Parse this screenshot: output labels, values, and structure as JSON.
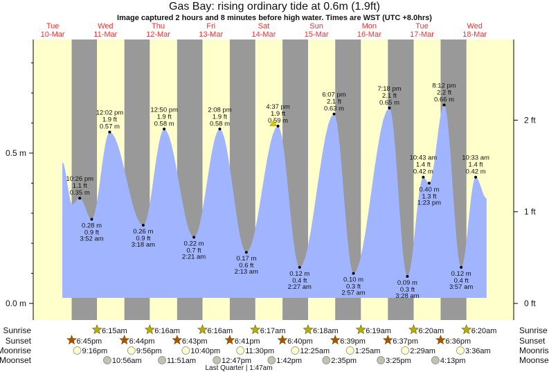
{
  "title": "Gas Bay: rising  ordinary tide at 0.6m (1.9ft)",
  "subtitle": "Image captured 2 hours and 8 minutes before high water. Times are WST (UTC +8.0hrs)",
  "colors": {
    "day": "#ffffcc",
    "night": "#999999",
    "water": "#a0b4ff",
    "day_label": "#ff2a2a",
    "sunrise": "#b8b000",
    "sunset": "#b25000",
    "moonrise": "#ffffcc",
    "moonset": "#c4c2ae",
    "now_marker": "#d8c800"
  },
  "chart_data": {
    "type": "area",
    "title": "Gas Bay: rising  ordinary tide at 0.6m (1.9ft)",
    "days": [
      {
        "dow": "Tue",
        "date": "10-Mar"
      },
      {
        "dow": "Wed",
        "date": "11-Mar"
      },
      {
        "dow": "Thu",
        "date": "12-Mar"
      },
      {
        "dow": "Fri",
        "date": "13-Mar"
      },
      {
        "dow": "Sat",
        "date": "14-Mar"
      },
      {
        "dow": "Sun",
        "date": "15-Mar"
      },
      {
        "dow": "Mon",
        "date": "16-Mar"
      },
      {
        "dow": "Tue",
        "date": "17-Mar"
      },
      {
        "dow": "Wed",
        "date": "18-Mar"
      }
    ],
    "y_left": {
      "unit": "m",
      "range": [
        -0.055,
        0.878
      ],
      "ticks": [
        {
          "v": 0.0,
          "label": "0.0 m"
        },
        {
          "v": 0.5,
          "label": "0.5 m"
        }
      ]
    },
    "y_right": {
      "unit": "ft",
      "ticks": [
        {
          "v": 0,
          "label": "0 ft"
        },
        {
          "v": 1,
          "label": "1 ft"
        },
        {
          "v": 2,
          "label": "2 ft"
        }
      ]
    },
    "curve_start": {
      "day": 0,
      "time": "2:30 pm",
      "m": 0.47
    },
    "curve_minor_low": {
      "day": 0,
      "time": "7:00 pm",
      "m": 0.33
    },
    "curve_end": {
      "day": 8,
      "time": "3:30 pm",
      "m": 0.35
    },
    "extremes": [
      {
        "day": 0,
        "time": "10:26 pm",
        "m": "0.35 m",
        "ft": "1.1 ft",
        "value": 0.35,
        "type": "high"
      },
      {
        "day": 1,
        "time": "3:52 am",
        "m": "0.28 m",
        "ft": "0.9 ft",
        "value": 0.28,
        "type": "low"
      },
      {
        "day": 1,
        "time": "12:02 pm",
        "m": "0.57 m",
        "ft": "1.9 ft",
        "value": 0.57,
        "type": "high"
      },
      {
        "day": 2,
        "time": "3:18 am",
        "m": "0.26 m",
        "ft": "0.9 ft",
        "value": 0.26,
        "type": "low"
      },
      {
        "day": 2,
        "time": "12:50 pm",
        "m": "0.58 m",
        "ft": "1.9 ft",
        "value": 0.58,
        "type": "high"
      },
      {
        "day": 3,
        "time": "2:21 am",
        "m": "0.22 m",
        "ft": "0.7 ft",
        "value": 0.22,
        "type": "low"
      },
      {
        "day": 3,
        "time": "2:08 pm",
        "m": "0.58 m",
        "ft": "1.9 ft",
        "value": 0.58,
        "type": "high"
      },
      {
        "day": 4,
        "time": "2:13 am",
        "m": "0.17 m",
        "ft": "0.6 ft",
        "value": 0.17,
        "type": "low"
      },
      {
        "day": 4,
        "time": "4:37 pm",
        "m": "0.59 m",
        "ft": "1.9 ft",
        "value": 0.59,
        "type": "high"
      },
      {
        "day": 5,
        "time": "2:27 am",
        "m": "0.12 m",
        "ft": "0.4 ft",
        "value": 0.12,
        "type": "low"
      },
      {
        "day": 5,
        "time": "6:07 pm",
        "m": "0.63 m",
        "ft": "2.1 ft",
        "value": 0.63,
        "type": "high"
      },
      {
        "day": 6,
        "time": "2:57 am",
        "m": "0.10 m",
        "ft": "0.3 ft",
        "value": 0.1,
        "type": "low"
      },
      {
        "day": 6,
        "time": "7:18 pm",
        "m": "0.65 m",
        "ft": "2.1 ft",
        "value": 0.65,
        "type": "high"
      },
      {
        "day": 7,
        "time": "3:28 am",
        "m": "0.09 m",
        "ft": "0.3 ft",
        "value": 0.09,
        "type": "low"
      },
      {
        "day": 7,
        "time": "10:43 am",
        "m": "0.42 m",
        "ft": "1.4 ft",
        "value": 0.42,
        "type": "high"
      },
      {
        "day": 7,
        "time": "1:23 pm",
        "m": "0.40 m",
        "ft": "1.3 ft",
        "value": 0.4,
        "type": "low"
      },
      {
        "day": 7,
        "time": "8:12 pm",
        "m": "0.66 m",
        "ft": "2.2 ft",
        "value": 0.66,
        "type": "high"
      },
      {
        "day": 8,
        "time": "3:57 am",
        "m": "0.12 m",
        "ft": "0.4 ft",
        "value": 0.12,
        "type": "low"
      },
      {
        "day": 8,
        "time": "10:33 am",
        "m": "0.42 m",
        "ft": "1.4 ft",
        "value": 0.42,
        "type": "high"
      }
    ],
    "now_marker": {
      "day": 4,
      "time": "2:29 pm",
      "m": 0.6
    },
    "rows": {
      "sunrise": {
        "label": "Sunrise",
        "items": [
          {
            "day": 1,
            "time": "6:15am"
          },
          {
            "day": 2,
            "time": "6:16am"
          },
          {
            "day": 3,
            "time": "6:16am"
          },
          {
            "day": 4,
            "time": "6:17am"
          },
          {
            "day": 5,
            "time": "6:18am"
          },
          {
            "day": 6,
            "time": "6:19am"
          },
          {
            "day": 7,
            "time": "6:20am"
          },
          {
            "day": 8,
            "time": "6:20am"
          }
        ]
      },
      "sunset": {
        "label": "Sunset",
        "items": [
          {
            "day": 0,
            "time": "6:45pm"
          },
          {
            "day": 1,
            "time": "6:44pm"
          },
          {
            "day": 2,
            "time": "6:43pm"
          },
          {
            "day": 3,
            "time": "6:41pm"
          },
          {
            "day": 4,
            "time": "6:40pm"
          },
          {
            "day": 5,
            "time": "6:39pm"
          },
          {
            "day": 6,
            "time": "6:37pm"
          },
          {
            "day": 7,
            "time": "6:36pm"
          }
        ]
      },
      "moonrise": {
        "label": "Moonrise",
        "items": [
          {
            "day": 0,
            "time": "9:16pm"
          },
          {
            "day": 1,
            "time": "9:56pm"
          },
          {
            "day": 2,
            "time": "10:40pm"
          },
          {
            "day": 3,
            "time": "11:30pm"
          },
          {
            "day": 5,
            "time": "12:25am"
          },
          {
            "day": 6,
            "time": "1:25am"
          },
          {
            "day": 7,
            "time": "2:29am"
          },
          {
            "day": 8,
            "time": "3:36am"
          }
        ]
      },
      "moonset": {
        "label": "Moonset",
        "items": [
          {
            "day": 1,
            "time": "10:56am"
          },
          {
            "day": 2,
            "time": "11:51am"
          },
          {
            "day": 3,
            "time": "12:47pm"
          },
          {
            "day": 4,
            "time": "1:42pm"
          },
          {
            "day": 5,
            "time": "2:35pm"
          },
          {
            "day": 6,
            "time": "3:25pm"
          },
          {
            "day": 7,
            "time": "4:13pm"
          }
        ]
      }
    },
    "moon_phase": {
      "label": "Last Quarter | 1:47am",
      "day": 4,
      "time": "1:47am"
    }
  }
}
